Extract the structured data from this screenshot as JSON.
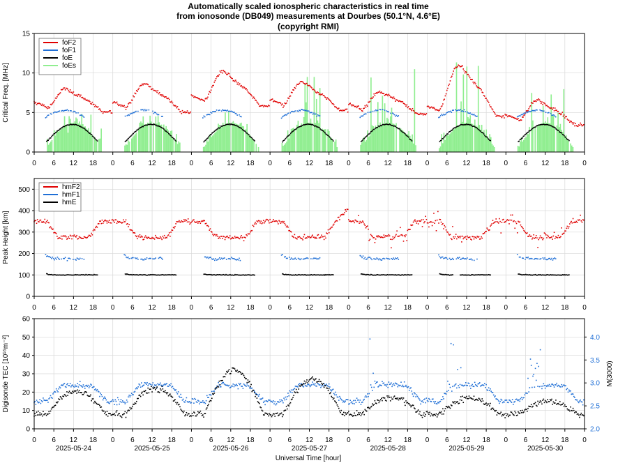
{
  "title": [
    "Automatically scaled ionospheric characteristics in real time",
    "from ionosonde (DB049) measurements at Dourbes (50.1°N, 4.6°E)",
    "(copyright RMI)"
  ],
  "colors": {
    "foF2": "#e00000",
    "foF1": "#1f6fd6",
    "foE": "#000000",
    "foEs": "#90ee90",
    "grid": "#d8d8d8"
  },
  "x_axis": {
    "xlabel": "Universal Time [hour]",
    "hour_ticks": [
      "0",
      "6",
      "12",
      "18"
    ],
    "end_tick": "0",
    "dates": [
      "2025-05-24",
      "2025-05-25",
      "2025-05-26",
      "2025-05-27",
      "2025-05-28",
      "2025-05-29",
      "2025-05-30"
    ]
  },
  "chart_data": [
    {
      "type": "scatter",
      "ylabel": "Critical Freq. [MHz]",
      "ylim": [
        0,
        15
      ],
      "yticks": [
        "0",
        "5",
        "10",
        "15"
      ],
      "grid": true,
      "legend_position": "top-left",
      "series": [
        {
          "name": "foF2",
          "kind": "dots"
        },
        {
          "name": "foF1",
          "kind": "dots"
        },
        {
          "name": "foE",
          "kind": "dots"
        },
        {
          "name": "foEs",
          "kind": "bars"
        }
      ],
      "daily_peaks_foF2": [
        8.2,
        8.9,
        10.5,
        9.1,
        7.8,
        11.5,
        6.8
      ],
      "daily_min_foF2": [
        5.0,
        5.0,
        5.8,
        5.3,
        4.8,
        4.5,
        3.4
      ],
      "foF1_peak": 5.3,
      "foE_peak": 3.5,
      "foEs_daily_max": [
        4.8,
        4.6,
        5.5,
        9.5,
        11.0,
        12.0,
        9.0
      ]
    },
    {
      "type": "scatter",
      "ylabel": "Peak Height [km]",
      "ylim": [
        0,
        550
      ],
      "yticks": [
        "0",
        "100",
        "200",
        "300",
        "400",
        "500"
      ],
      "grid": true,
      "legend_position": "top-left",
      "series": [
        {
          "name": "hmF2"
        },
        {
          "name": "hmF1"
        },
        {
          "name": "hmE"
        }
      ],
      "hmF2_night": 350,
      "hmF2_day": 275,
      "hmF1_day": 175,
      "hmE_day": 100
    },
    {
      "type": "scatter",
      "ylabel": "Digisonde TEC [10¹⁶m⁻²]",
      "ylim": [
        0,
        60
      ],
      "yticks": [
        "0",
        "10",
        "20",
        "30",
        "40",
        "50",
        "60"
      ],
      "y2label": "M(3000)",
      "y2lim": [
        2.0,
        4.4
      ],
      "y2ticks": [
        "2.0",
        "2.5",
        "3.0",
        "3.5",
        "4.0"
      ],
      "grid": true,
      "series": [
        {
          "name": "TEC",
          "axis": "left"
        },
        {
          "name": "M(3000)",
          "axis": "right"
        }
      ],
      "tec_daily_peaks": [
        20,
        22,
        32,
        27,
        17,
        17,
        15
      ],
      "tec_night_min": 8,
      "m3000_night": 2.6,
      "m3000_day": 2.95
    }
  ]
}
